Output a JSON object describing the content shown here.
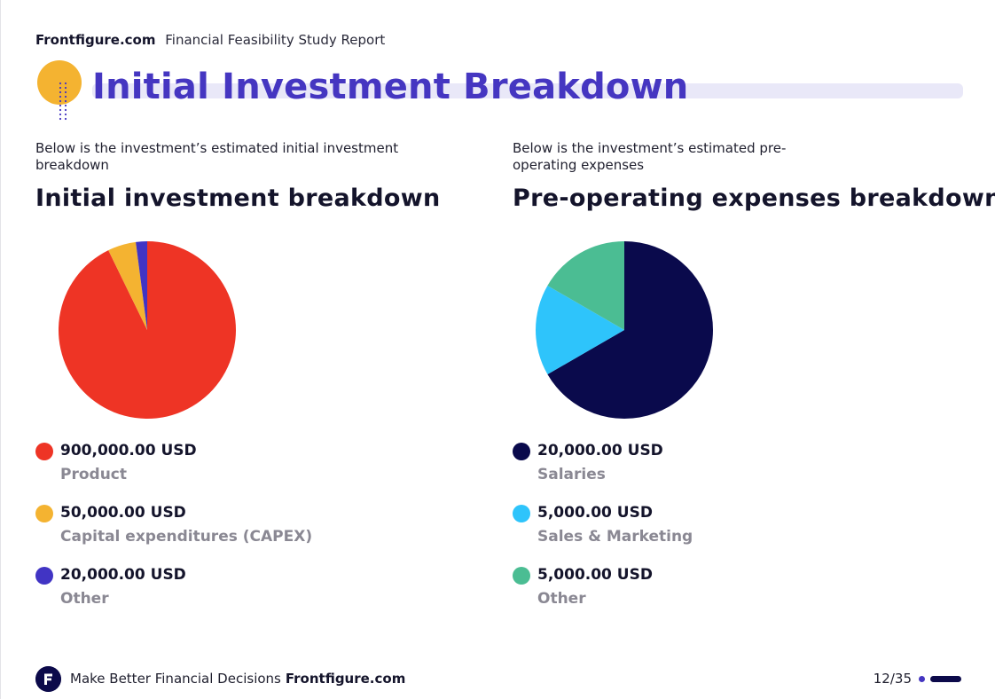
{
  "header": {
    "brand": "Frontfigure.com",
    "report_name": "Financial Feasibility Study Report"
  },
  "page_title": "Initial Investment Breakdown",
  "sections": [
    {
      "intro": "Below is the investment’s estimated initial investment breakdown",
      "chart_title": "Initial investment breakdown"
    },
    {
      "intro": "Below is the investment’s estimated pre-operating expenses",
      "chart_title": "Pre-operating expenses breakdown"
    }
  ],
  "chart_data": [
    {
      "type": "pie",
      "title": "Initial investment breakdown",
      "slices": [
        {
          "label": "Product",
          "value": 900000,
          "value_text": "900,000.00 USD",
          "color": "#ee3425"
        },
        {
          "label": "Capital expenditures (CAPEX)",
          "value": 50000,
          "value_text": "50,000.00 USD",
          "color": "#f4b331"
        },
        {
          "label": "Other",
          "value": 20000,
          "value_text": "20,000.00 USD",
          "color": "#4134c4"
        }
      ]
    },
    {
      "type": "pie",
      "title": "Pre-operating expenses breakdown",
      "slices": [
        {
          "label": "Salaries",
          "value": 20000,
          "value_text": "20,000.00 USD",
          "color": "#0a0a4c"
        },
        {
          "label": "Sales & Marketing",
          "value": 5000,
          "value_text": "5,000.00 USD",
          "color": "#2ec4fb"
        },
        {
          "label": "Other",
          "value": 5000,
          "value_text": "5,000.00 USD",
          "color": "#4bbd93"
        }
      ]
    }
  ],
  "footer": {
    "tagline": "Make Better Financial Decisions",
    "brand": "Frontfigure.com",
    "page": "12/35"
  },
  "colors": {
    "accent": "#4536c1",
    "title_bar": "#e9e8f8",
    "deco_circle": "#f4b331",
    "navy": "#0c0a4a",
    "muted": "#8a8893"
  }
}
